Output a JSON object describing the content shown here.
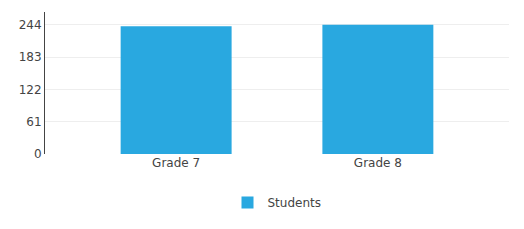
{
  "chart_data": {
    "type": "bar",
    "categories": [
      "Grade 7",
      "Grade 8"
    ],
    "series": [
      {
        "name": "Students",
        "color": "#29a8e0",
        "values": [
          241,
          244
        ]
      }
    ],
    "ylim": [
      0,
      268
    ],
    "yticks": [
      0,
      61,
      122,
      183,
      244
    ],
    "grid": true,
    "legend": "bottom"
  }
}
